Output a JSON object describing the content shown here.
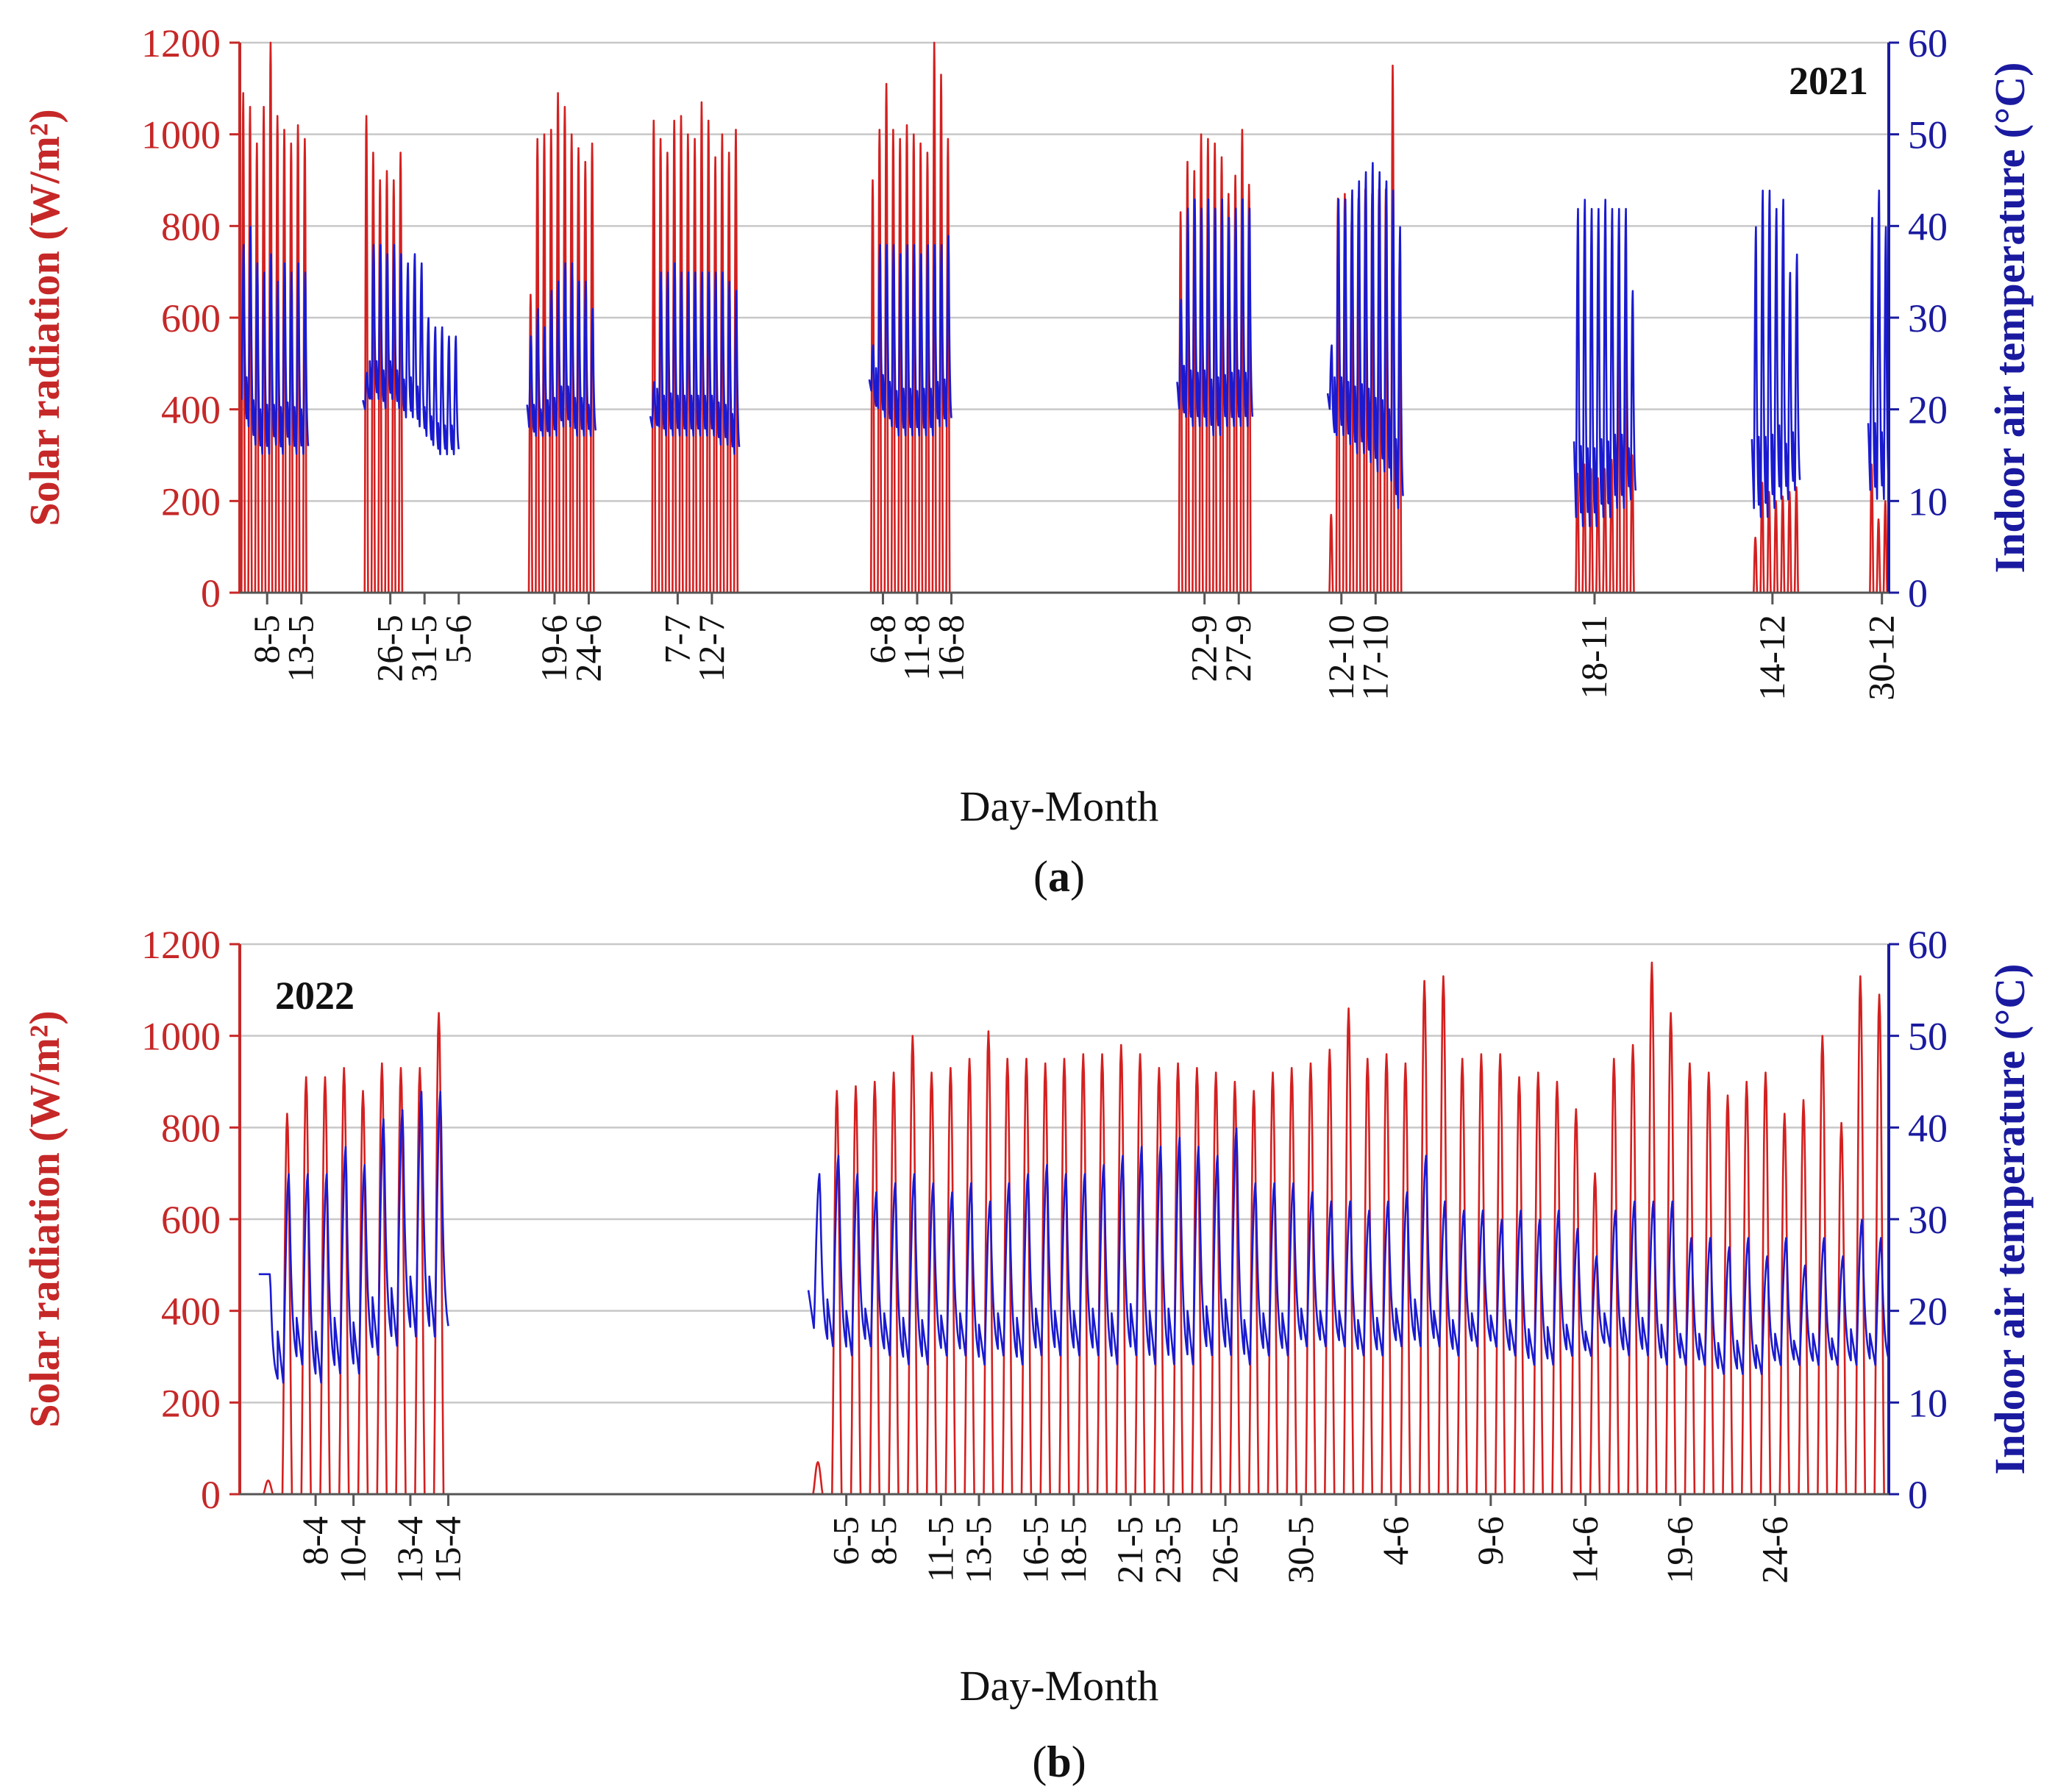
{
  "colors": {
    "radiation": "#d42020",
    "temperature": "#1a1ad0",
    "grid": "#c8c8c8",
    "axis_text_left": "#c62828",
    "axis_text_right": "#1a1aa0",
    "text": "#111111"
  },
  "chart_data": [
    {
      "id": "a",
      "type": "line",
      "caption": "a",
      "caption_full": "(a)",
      "year_label": "2021",
      "xlabel": "Day-Month",
      "ylabel_left": "Solar radiation (W/m²)",
      "ylabel_right": "Indoor air temperature (°C)",
      "ylim_left": [
        0,
        1200
      ],
      "ylim_right": [
        0,
        60
      ],
      "yticks_left": [
        "0",
        "200",
        "400",
        "600",
        "800",
        "1000",
        "1200"
      ],
      "yticks_right": [
        "0",
        "10",
        "20",
        "30",
        "40",
        "50",
        "60"
      ],
      "x_days": [
        124,
        365
      ],
      "grid": true,
      "tick_labels": [
        {
          "label": "8-5",
          "day": 128
        },
        {
          "label": "13-5",
          "day": 133
        },
        {
          "label": "26-5",
          "day": 146
        },
        {
          "label": "31-5",
          "day": 151
        },
        {
          "label": "5-6",
          "day": 156
        },
        {
          "label": "19-6",
          "day": 170
        },
        {
          "label": "24-6",
          "day": 175
        },
        {
          "label": "7-7",
          "day": 188
        },
        {
          "label": "12-7",
          "day": 193
        },
        {
          "label": "6-8",
          "day": 218
        },
        {
          "label": "11-8",
          "day": 223
        },
        {
          "label": "16-8",
          "day": 228
        },
        {
          "label": "22-9",
          "day": 265
        },
        {
          "label": "27-9",
          "day": 270
        },
        {
          "label": "12-10",
          "day": 285
        },
        {
          "label": "17-10",
          "day": 290
        },
        {
          "label": "18-11",
          "day": 322
        },
        {
          "label": "14-12",
          "day": 348
        },
        {
          "label": "30-12",
          "day": 364
        }
      ],
      "periods": [
        {
          "start": 124,
          "end": 134,
          "rad_peak": [
            1090,
            1060,
            980,
            1060,
            1200,
            1040,
            1010,
            980,
            1020,
            990
          ],
          "temp_max": [
            38,
            40,
            36,
            35,
            37,
            34,
            36,
            35,
            36,
            35
          ],
          "temp_min": [
            21,
            18,
            16,
            15,
            15,
            16,
            15,
            16,
            15,
            15
          ]
        },
        {
          "start": 142,
          "end": 156,
          "rad_peak": [
            1040,
            960,
            900,
            920,
            900,
            960,
            0,
            0,
            0,
            0,
            0,
            0,
            0,
            0
          ],
          "temp_max": [
            24,
            38,
            38,
            37,
            38,
            37,
            36,
            37,
            36,
            30,
            29,
            29,
            28,
            28
          ],
          "temp_min": [
            20,
            21,
            21,
            20,
            21,
            20,
            19,
            19,
            18,
            17,
            16,
            15,
            15,
            15
          ]
        },
        {
          "start": 166,
          "end": 176,
          "rad_peak": [
            650,
            990,
            1000,
            1010,
            1090,
            1060,
            1000,
            970,
            940,
            980
          ],
          "temp_max": [
            28,
            31,
            29,
            33,
            34,
            36,
            36,
            34,
            34,
            31
          ],
          "temp_min": [
            18,
            17,
            17,
            17,
            17,
            18,
            18,
            17,
            17,
            17
          ]
        },
        {
          "start": 184,
          "end": 197,
          "rad_peak": [
            1030,
            990,
            960,
            1030,
            1040,
            1000,
            990,
            1070,
            1030,
            950,
            1000,
            960,
            1010
          ],
          "temp_max": [
            23,
            35,
            35,
            36,
            35,
            35,
            35,
            35,
            35,
            35,
            35,
            34,
            33
          ],
          "temp_min": [
            18,
            18,
            17,
            17,
            17,
            17,
            17,
            17,
            17,
            17,
            16,
            16,
            15
          ]
        },
        {
          "start": 216,
          "end": 228,
          "rad_peak": [
            900,
            1010,
            1110,
            1010,
            990,
            1020,
            1000,
            980,
            960,
            1200,
            1130,
            990
          ],
          "temp_max": [
            27,
            38,
            38,
            38,
            37,
            38,
            38,
            37,
            38,
            38,
            38,
            39
          ],
          "temp_min": [
            22,
            20,
            19,
            18,
            17,
            17,
            17,
            17,
            17,
            17,
            18,
            18
          ]
        },
        {
          "start": 261,
          "end": 272,
          "rad_peak": [
            830,
            940,
            920,
            1000,
            990,
            980,
            950,
            870,
            910,
            1010,
            890
          ],
          "temp_max": [
            32,
            42,
            43,
            42,
            43,
            42,
            43,
            41,
            42,
            43,
            42
          ],
          "temp_min": [
            20,
            19,
            18,
            18,
            18,
            17,
            17,
            18,
            18,
            18,
            18
          ]
        },
        {
          "start": 283,
          "end": 294,
          "rad_peak": [
            170,
            860,
            870,
            810,
            860,
            880,
            870,
            880,
            880,
            1150,
            720
          ],
          "temp_max": [
            27,
            43,
            43,
            44,
            45,
            46,
            47,
            46,
            45,
            44,
            40
          ],
          "temp_min": [
            20,
            17,
            17,
            16,
            15,
            15,
            14,
            13,
            13,
            12,
            9
          ]
        },
        {
          "start": 319,
          "end": 328,
          "rad_peak": [
            260,
            280,
            270,
            250,
            270,
            290,
            580,
            600,
            300
          ],
          "temp_max": [
            42,
            43,
            42,
            42,
            43,
            42,
            42,
            42,
            33
          ],
          "temp_min": [
            8,
            7,
            7,
            7,
            8,
            8,
            9,
            9,
            10
          ]
        },
        {
          "start": 345,
          "end": 352,
          "rad_peak": [
            120,
            240,
            220,
            200,
            210,
            220,
            230
          ],
          "temp_max": [
            40,
            44,
            44,
            42,
            43,
            35,
            37
          ],
          "temp_min": [
            9,
            8,
            8,
            9,
            10,
            10,
            11
          ]
        },
        {
          "start": 362,
          "end": 365,
          "rad_peak": [
            280,
            160,
            200
          ],
          "temp_max": [
            41,
            44,
            40
          ],
          "temp_min": [
            11,
            10,
            10
          ]
        }
      ]
    },
    {
      "id": "b",
      "type": "line",
      "caption": "b",
      "caption_full": "(b)",
      "year_label": "2022",
      "xlabel": "Day-Month",
      "ylabel_left": "Solar radiation (W/m²)",
      "ylabel_right": "Indoor air temperature (°C)",
      "ylim_left": [
        0,
        1200
      ],
      "ylim_right": [
        0,
        60
      ],
      "yticks_left": [
        "0",
        "200",
        "400",
        "600",
        "800",
        "1000",
        "1200"
      ],
      "yticks_right": [
        "0",
        "10",
        "20",
        "30",
        "40",
        "50",
        "60"
      ],
      "x_days": [
        94,
        181
      ],
      "grid": true,
      "tick_labels": [
        {
          "label": "8-4",
          "day": 98
        },
        {
          "label": "10-4",
          "day": 100
        },
        {
          "label": "13-4",
          "day": 103
        },
        {
          "label": "15-4",
          "day": 105
        },
        {
          "label": "6-5",
          "day": 126
        },
        {
          "label": "8-5",
          "day": 128
        },
        {
          "label": "11-5",
          "day": 131
        },
        {
          "label": "13-5",
          "day": 133
        },
        {
          "label": "16-5",
          "day": 136
        },
        {
          "label": "18-5",
          "day": 138
        },
        {
          "label": "21-5",
          "day": 141
        },
        {
          "label": "23-5",
          "day": 143
        },
        {
          "label": "26-5",
          "day": 146
        },
        {
          "label": "30-5",
          "day": 150
        },
        {
          "label": "4-6",
          "day": 155
        },
        {
          "label": "9-6",
          "day": 160
        },
        {
          "label": "14-6",
          "day": 165
        },
        {
          "label": "19-6",
          "day": 170
        },
        {
          "label": "24-6",
          "day": 175
        }
      ],
      "periods": [
        {
          "start": 95,
          "end": 106,
          "rad_peak": [
            30,
            830,
            910,
            910,
            930,
            880,
            940,
            930,
            930,
            1050
          ],
          "temp_max": [
            24,
            35,
            35,
            35,
            38,
            36,
            41,
            42,
            44,
            44
          ],
          "temp_min": [
            24,
            12,
            14,
            12,
            13,
            13,
            15,
            16,
            17,
            17
          ]
        },
        {
          "start": 124,
          "end": 180,
          "rad_peak": [
            70,
            880,
            890,
            900,
            920,
            1000,
            920,
            930,
            950,
            1010,
            950,
            950,
            940,
            950,
            960,
            960,
            980,
            960,
            930,
            940,
            930,
            920,
            900,
            880,
            920,
            930,
            940,
            970,
            1060,
            950,
            960,
            940,
            1120,
            1130,
            950,
            960,
            960,
            910,
            920,
            900,
            840,
            700,
            950,
            980,
            1160,
            1050,
            940,
            920,
            870,
            900,
            920,
            830,
            860,
            1000,
            810,
            1130,
            1090
          ],
          "temp_max": [
            35,
            37,
            35,
            33,
            34,
            35,
            34,
            33,
            34,
            32,
            34,
            35,
            36,
            35,
            35,
            36,
            37,
            38,
            38,
            39,
            38,
            37,
            40,
            34,
            34,
            34,
            33,
            32,
            32,
            31,
            32,
            33,
            37,
            32,
            31,
            31,
            30,
            31,
            30,
            31,
            29,
            26,
            31,
            32,
            32,
            32,
            28,
            28,
            27,
            28,
            26,
            28,
            25,
            28,
            26,
            30,
            28
          ],
          "temp_min": [
            18,
            16,
            15,
            16,
            15,
            14,
            14,
            15,
            15,
            14,
            15,
            14,
            15,
            15,
            15,
            15,
            14,
            15,
            14,
            14,
            14,
            15,
            15,
            14,
            15,
            15,
            16,
            16,
            16,
            15,
            15,
            16,
            16,
            16,
            15,
            16,
            16,
            15,
            14,
            14,
            15,
            15,
            16,
            15,
            15,
            14,
            14,
            14,
            13,
            13,
            13,
            14,
            14,
            14,
            14,
            14,
            14
          ]
        }
      ]
    }
  ]
}
